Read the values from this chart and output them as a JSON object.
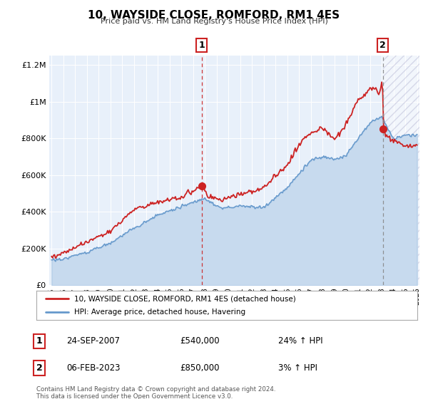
{
  "title": "10, WAYSIDE CLOSE, ROMFORD, RM1 4ES",
  "subtitle": "Price paid vs. HM Land Registry's House Price Index (HPI)",
  "xlim": [
    1994.8,
    2026.2
  ],
  "ylim": [
    0,
    1250000
  ],
  "yticks": [
    0,
    200000,
    400000,
    600000,
    800000,
    1000000,
    1200000
  ],
  "ytick_labels": [
    "£0",
    "£200K",
    "£400K",
    "£600K",
    "£800K",
    "£1M",
    "£1.2M"
  ],
  "xticks": [
    1995,
    1996,
    1997,
    1998,
    1999,
    2000,
    2001,
    2002,
    2003,
    2004,
    2005,
    2006,
    2007,
    2008,
    2009,
    2010,
    2011,
    2012,
    2013,
    2014,
    2015,
    2016,
    2017,
    2018,
    2019,
    2020,
    2021,
    2022,
    2023,
    2024,
    2025,
    2026
  ],
  "sale1_x": 2007.73,
  "sale1_y": 540000,
  "sale2_x": 2023.09,
  "sale2_y": 850000,
  "vline1_x": 2007.73,
  "vline2_x": 2023.09,
  "hatch_start": 2023.09,
  "legend_line1": "10, WAYSIDE CLOSE, ROMFORD, RM1 4ES (detached house)",
  "legend_line2": "HPI: Average price, detached house, Havering",
  "annotation1_date": "24-SEP-2007",
  "annotation1_price": "£540,000",
  "annotation1_hpi": "24% ↑ HPI",
  "annotation2_date": "06-FEB-2023",
  "annotation2_price": "£850,000",
  "annotation2_hpi": "3% ↑ HPI",
  "footer": "Contains HM Land Registry data © Crown copyright and database right 2024.\nThis data is licensed under the Open Government Licence v3.0.",
  "red_color": "#cc2222",
  "blue_color": "#6699cc",
  "plot_bg": "#e8f0fa",
  "hatch_color": "#c8d8e8"
}
